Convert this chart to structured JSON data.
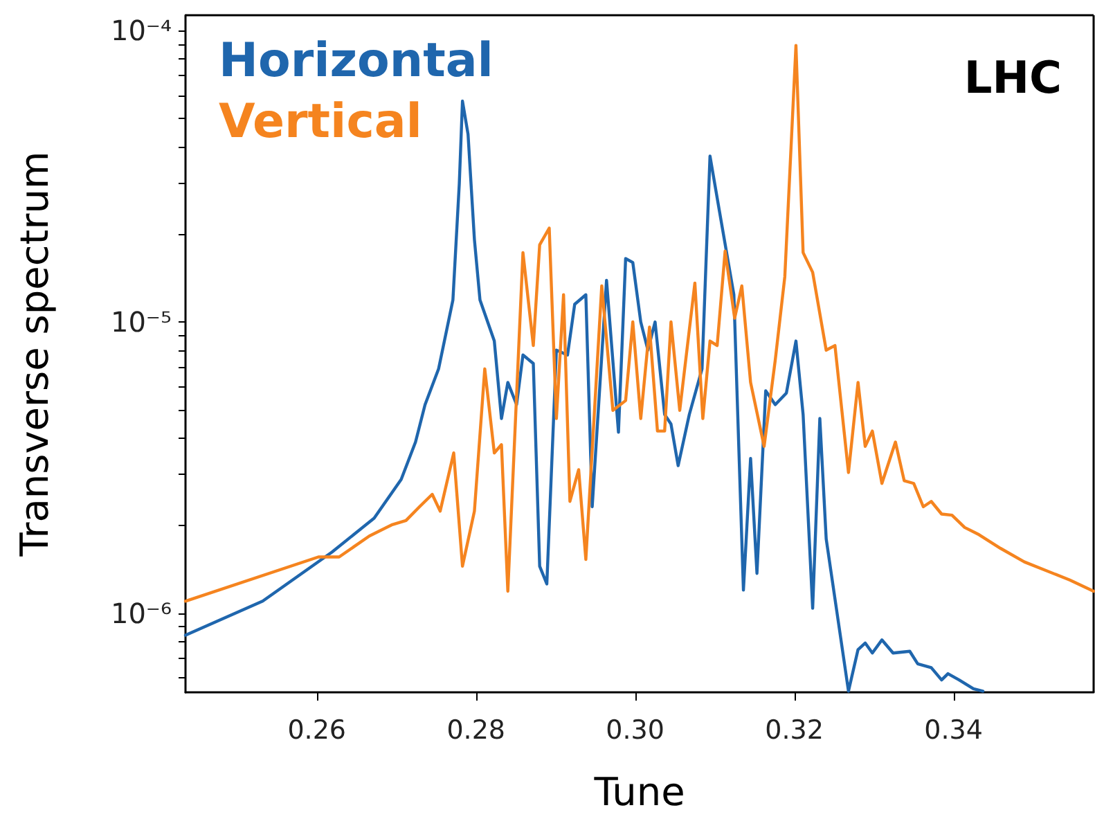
{
  "chart_data": {
    "type": "line",
    "xlabel": "Tune",
    "ylabel": "Transverse spectrum",
    "annotations": [
      "LHC"
    ],
    "log": "y",
    "grid": false,
    "legend": "top left",
    "marker": "none",
    "line_style": "solid",
    "xlim": [
      0.2435,
      0.3576
    ],
    "xticks": [
      0.26,
      0.28,
      {
        "value": 0.3,
        "label": "0.30"
      },
      0.32,
      0.34
    ],
    "ylim": [
      5.35e-07,
      0.000113
    ],
    "yticks": [
      {
        "value": 6e-07,
        "label": null
      },
      {
        "value": 7e-07,
        "label": null
      },
      {
        "value": 8e-07,
        "label": null
      },
      {
        "value": 9e-07,
        "label": null
      },
      {
        "value": 1e-06,
        "label": "10⁻⁶"
      },
      {
        "value": 2e-06,
        "label": null
      },
      {
        "value": 3e-06,
        "label": null
      },
      {
        "value": 4e-06,
        "label": null
      },
      {
        "value": 5e-06,
        "label": null
      },
      {
        "value": 6e-06,
        "label": null
      },
      {
        "value": 7e-06,
        "label": null
      },
      {
        "value": 8e-06,
        "label": null
      },
      {
        "value": 9e-06,
        "label": null
      },
      {
        "value": 1e-05,
        "label": "10⁻⁵"
      },
      {
        "value": 2e-05,
        "label": null
      },
      {
        "value": 3e-05,
        "label": null
      },
      {
        "value": 4e-05,
        "label": null
      },
      {
        "value": 5e-05,
        "label": null
      },
      {
        "value": 6e-05,
        "label": null
      },
      {
        "value": 7e-05,
        "label": null
      },
      {
        "value": 8e-05,
        "label": null
      },
      {
        "value": 9e-05,
        "label": null
      },
      {
        "value": 0.0001,
        "label": "10⁻⁴"
      }
    ],
    "series": [
      {
        "name": "Horizontal",
        "color": "#1f66ad",
        "x": [
          0.2435,
          0.2532,
          0.2619,
          0.2672,
          0.2706,
          0.2724,
          0.2736,
          0.2753,
          0.2771,
          0.2779,
          0.2783,
          0.279,
          0.2798,
          0.2805,
          0.2823,
          0.2832,
          0.284,
          0.2851,
          0.2859,
          0.2872,
          0.288,
          0.2889,
          0.2901,
          0.2915,
          0.2924,
          0.2938,
          0.2946,
          0.2964,
          0.2979,
          0.2988,
          0.2997,
          0.3007,
          0.3016,
          0.3025,
          0.3037,
          0.3045,
          0.3054,
          0.3068,
          0.3084,
          0.3094,
          0.3106,
          0.3124,
          0.3136,
          0.3145,
          0.3153,
          0.3164,
          0.3176,
          0.319,
          0.3202,
          0.3211,
          0.3223,
          0.3232,
          0.324,
          0.3268,
          0.328,
          0.3289,
          0.3298,
          0.331,
          0.3324,
          0.3345,
          0.3355,
          0.3372,
          0.3385,
          0.3393,
          0.3407,
          0.3425,
          0.3437
        ],
        "values": [
          8.4e-07,
          1.1e-06,
          1.62e-06,
          2.12e-06,
          2.88e-06,
          3.87e-06,
          5.2e-06,
          6.9e-06,
          1.19e-05,
          2.98e-05,
          5.73e-05,
          4.41e-05,
          1.92e-05,
          1.19e-05,
          8.6e-06,
          4.66e-06,
          6.2e-06,
          5.2e-06,
          7.7e-06,
          7.2e-06,
          1.45e-06,
          1.26e-06,
          8e-06,
          7.7e-06,
          1.15e-05,
          1.24e-05,
          2.32e-06,
          1.39e-05,
          4.18e-06,
          1.65e-05,
          1.6e-05,
          1e-05,
          8e-06,
          1e-05,
          4.81e-06,
          4.46e-06,
          3.21e-06,
          4.81e-06,
          6.9e-06,
          3.71e-05,
          2.39e-05,
          1.24e-05,
          1.2e-06,
          3.4e-06,
          1.37e-06,
          5.8e-06,
          5.2e-06,
          5.7e-06,
          8.6e-06,
          4.81e-06,
          1.04e-06,
          4.66e-06,
          1.8e-06,
          5.4e-07,
          7.5e-07,
          7.9e-07,
          7.3e-07,
          8.1e-07,
          7.3e-07,
          7.4e-07,
          6.7e-07,
          6.5e-07,
          5.9e-07,
          6.2e-07,
          5.9e-07,
          5.5e-07,
          5.4e-07
        ]
      },
      {
        "name": "Vertical",
        "color": "#f5841f",
        "x": [
          0.2435,
          0.2602,
          0.2628,
          0.2666,
          0.2694,
          0.2712,
          0.2729,
          0.2745,
          0.2755,
          0.2772,
          0.2783,
          0.2798,
          0.2811,
          0.2823,
          0.2832,
          0.284,
          0.2859,
          0.2872,
          0.288,
          0.2892,
          0.2901,
          0.291,
          0.2918,
          0.2929,
          0.2938,
          0.2958,
          0.2972,
          0.2988,
          0.2997,
          0.3007,
          0.3018,
          0.3028,
          0.3037,
          0.3045,
          0.3056,
          0.3075,
          0.3085,
          0.3094,
          0.3103,
          0.3113,
          0.3125,
          0.3134,
          0.3145,
          0.3162,
          0.3176,
          0.3188,
          0.3202,
          0.3211,
          0.3223,
          0.324,
          0.3251,
          0.3268,
          0.328,
          0.3289,
          0.3298,
          0.331,
          0.3327,
          0.3338,
          0.335,
          0.3362,
          0.3372,
          0.3385,
          0.3398,
          0.3414,
          0.3432,
          0.3459,
          0.3489,
          0.3546,
          0.3576
        ],
        "values": [
          1.1e-06,
          1.56e-06,
          1.56e-06,
          1.84e-06,
          2.01e-06,
          2.08e-06,
          2.32e-06,
          2.56e-06,
          2.24e-06,
          3.55e-06,
          1.45e-06,
          2.24e-06,
          6.9e-06,
          3.55e-06,
          3.79e-06,
          1.19e-06,
          1.73e-05,
          8.3e-06,
          1.84e-05,
          2.1e-05,
          4.66e-06,
          1.24e-05,
          2.42e-06,
          3.11e-06,
          1.53e-06,
          1.33e-05,
          4.97e-06,
          5.37e-06,
          1e-05,
          4.66e-06,
          9.6e-06,
          4.22e-06,
          4.22e-06,
          1e-05,
          4.97e-06,
          1.36e-05,
          4.66e-06,
          8.6e-06,
          8.3e-06,
          1.75e-05,
          1.03e-05,
          1.33e-05,
          6.2e-06,
          3.74e-06,
          7.4e-06,
          1.43e-05,
          8.9e-05,
          1.73e-05,
          1.48e-05,
          8e-06,
          8.3e-06,
          3.04e-06,
          6.2e-06,
          3.74e-06,
          4.22e-06,
          2.79e-06,
          3.87e-06,
          2.85e-06,
          2.79e-06,
          2.32e-06,
          2.42e-06,
          2.19e-06,
          2.17e-06,
          1.97e-06,
          1.86e-06,
          1.67e-06,
          1.5e-06,
          1.3e-06,
          1.19e-06
        ]
      }
    ]
  }
}
